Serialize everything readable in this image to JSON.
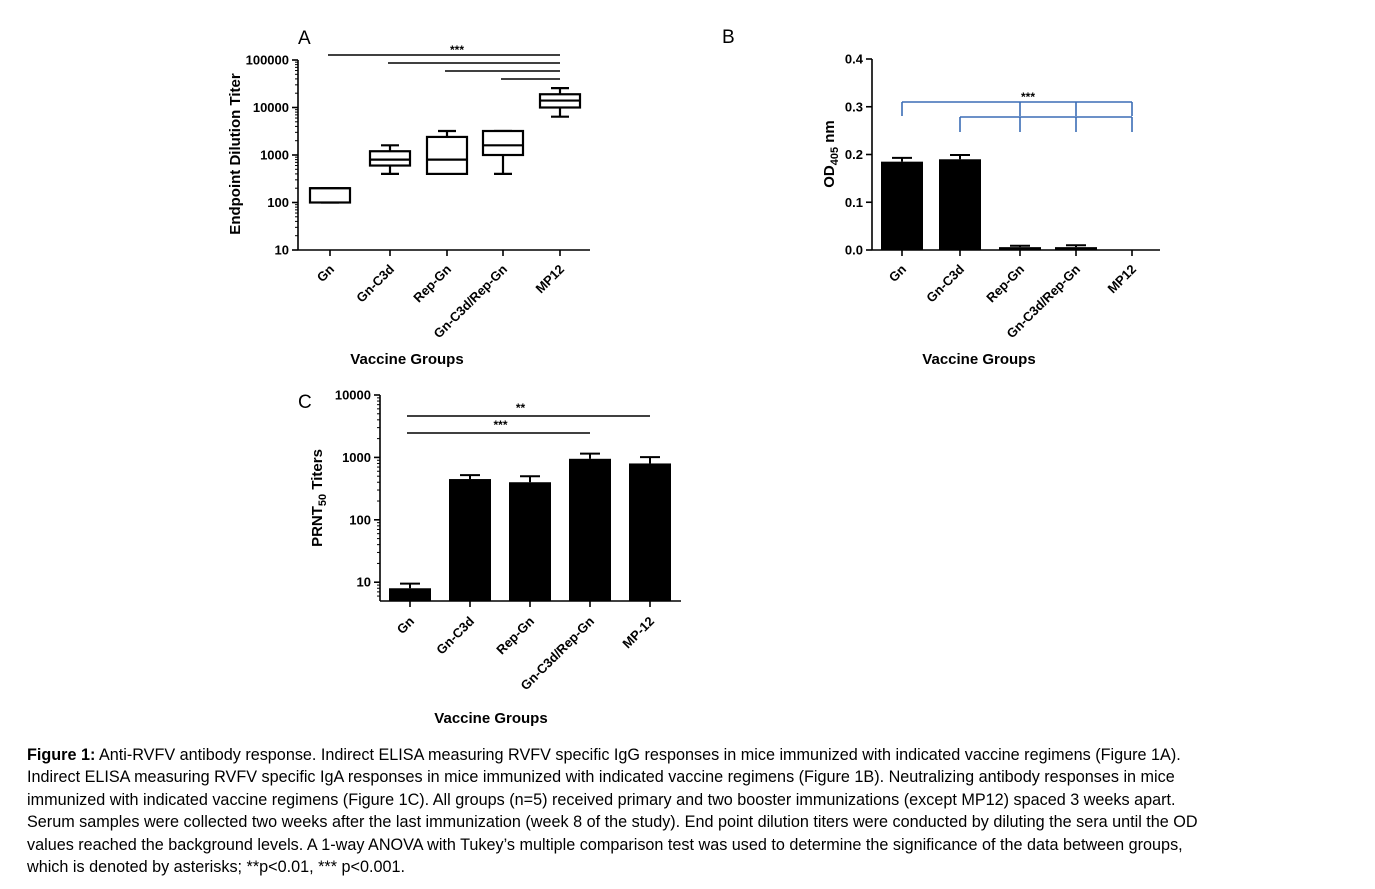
{
  "chart_data": [
    {
      "panel": "A",
      "type": "box",
      "categories": [
        "Gn",
        "Gn-C3d",
        "Rep-Gn",
        "Gn-C3d/Rep-Gn",
        "MP12"
      ],
      "series": [
        {
          "stats": [
            {
              "min": 100,
              "q1": 100,
              "median": 200,
              "q3": 200,
              "max": 200
            },
            {
              "min": 400,
              "q1": 600,
              "median": 800,
              "q3": 1200,
              "max": 1600
            },
            {
              "min": 400,
              "q1": 400,
              "median": 800,
              "q3": 2400,
              "max": 3200
            },
            {
              "min": 400,
              "q1": 1000,
              "median": 1600,
              "q3": 3200,
              "max": 3200
            },
            {
              "min": 6400,
              "q1": 10000,
              "median": 14000,
              "q3": 19000,
              "max": 25600
            }
          ]
        }
      ],
      "yscale": "log",
      "ylim": [
        10,
        100000
      ],
      "yticks": [
        "100000",
        "10000",
        "1000",
        "100",
        "10"
      ],
      "xlabel": "Vaccine Groups",
      "ylabel": "Endpoint Dilution Titer",
      "significance": [
        {
          "from": "Gn",
          "to": "MP12",
          "label": "***"
        },
        {
          "from": "Gn-C3d",
          "to": "MP12",
          "label": ""
        },
        {
          "from": "Rep-Gn",
          "to": "MP12",
          "label": ""
        },
        {
          "from": "Gn-C3d/Rep-Gn",
          "to": "MP12",
          "label": ""
        }
      ]
    },
    {
      "panel": "B",
      "type": "bar",
      "categories": [
        "Gn",
        "Gn-C3d",
        "Rep-Gn",
        "Gn-C3d/Rep-Gn",
        "MP12"
      ],
      "series": [
        {
          "values": [
            0.185,
            0.19,
            0.006,
            0.006,
            0.0
          ],
          "errors": [
            0.008,
            0.009,
            0.003,
            0.004,
            0.0
          ]
        }
      ],
      "ylim": [
        0,
        0.4
      ],
      "yticks": [
        "0.4",
        "0.3",
        "0.2",
        "0.1",
        "0.0"
      ],
      "xlabel": "Vaccine Groups",
      "ylabel_main": "OD",
      "ylabel_sub": "405",
      "ylabel_unit": " nm",
      "significance_bracket_color": "#3b6db5",
      "significance": [
        {
          "from": "Gn",
          "to": [
            "Rep-Gn",
            "Gn-C3d/Rep-Gn",
            "MP12"
          ],
          "label": "***"
        },
        {
          "from": "Gn-C3d",
          "to": [
            "Rep-Gn",
            "Gn-C3d/Rep-Gn",
            "MP12"
          ],
          "label": ""
        }
      ]
    },
    {
      "panel": "C",
      "type": "bar",
      "categories": [
        "Gn",
        "Gn-C3d",
        "Rep-Gn",
        "Gn-C3d/Rep-Gn",
        "MP-12"
      ],
      "series": [
        {
          "values": [
            8,
            450,
            400,
            950,
            800
          ],
          "errors_upper": [
            9.5,
            520,
            500,
            1150,
            1010
          ]
        }
      ],
      "yscale": "log",
      "ylim": [
        5,
        10000
      ],
      "yticks": [
        "10000",
        "1000",
        "100",
        "10"
      ],
      "xlabel": "Vaccine Groups",
      "ylabel_main": "PRNT",
      "ylabel_sub": "50",
      "ylabel_unit": " Titers",
      "significance": [
        {
          "from": "Gn",
          "to": "MP-12",
          "label": "**"
        },
        {
          "from": "Gn",
          "to": "Gn-C3d/Rep-Gn",
          "label": "***"
        }
      ]
    }
  ],
  "panel_letters": {
    "a": "A",
    "b": "B",
    "c": "C"
  },
  "caption": {
    "lead": "Figure 1:",
    "line1": " Anti-RVFV antibody response.  Indirect ELISA measuring RVFV specific IgG responses in mice immunized with indicated vaccine regimens (Figure 1A).",
    "line2": "Indirect ELISA measuring RVFV specific IgA responses in mice immunized with indicated vaccine regimens (Figure 1B). Neutralizing antibody responses in mice",
    "line3": "immunized with indicated vaccine regimens (Figure 1C).  All groups (n=5) received primary and two booster immunizations (except MP12) spaced 3 weeks apart.",
    "line4": "Serum samples were collected two weeks after the last immunization (week 8 of the study). End point dilution titers were conducted by diluting the sera until the OD",
    "line5": "values reached the background levels. A 1-way ANOVA with Tukey’s multiple comparison test was used to determine the significance of the data between groups,",
    "line6": "which is denoted by asterisks; **p<0.01, *** p<0.001."
  }
}
